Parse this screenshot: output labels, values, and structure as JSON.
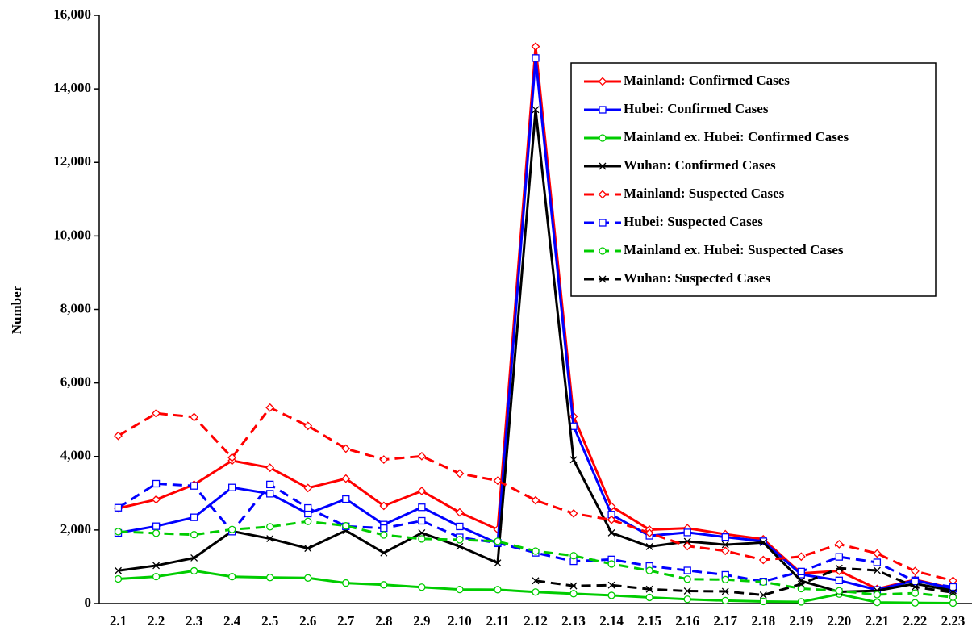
{
  "chart_data": {
    "type": "line",
    "ylabel": "Number",
    "categories": [
      "2.1",
      "2.2",
      "2.3",
      "2.4",
      "2.5",
      "2.6",
      "2.7",
      "2.8",
      "2.9",
      "2.10",
      "2.11",
      "2.12",
      "2.13",
      "2.14",
      "2.15",
      "2.16",
      "2.17",
      "2.18",
      "2.19",
      "2.20",
      "2.21",
      "2.22",
      "2.23"
    ],
    "ylim": [
      0,
      16000
    ],
    "yticks": [
      0,
      {
        "value": 2000,
        "label": "2,000"
      },
      {
        "value": 4000,
        "label": "4,000"
      },
      {
        "value": 6000,
        "label": "6,000"
      },
      {
        "value": 8000,
        "label": "8,000"
      },
      {
        "value": 10000,
        "label": "10,000"
      },
      {
        "value": 12000,
        "label": "12,000"
      },
      {
        "value": 14000,
        "label": "14,000"
      },
      {
        "value": 16000,
        "label": "16,000"
      }
    ],
    "series": [
      {
        "name": "Mainland: Confirmed Cases",
        "color": "#ff0000",
        "marker": "diamond",
        "dashed": false,
        "values": [
          2590,
          2829,
          3235,
          3887,
          3694,
          3143,
          3399,
          2656,
          3062,
          2478,
          2015,
          15152,
          5090,
          2641,
          2009,
          2048,
          1886,
          1749,
          820,
          889,
          397,
          648,
          409
        ]
      },
      {
        "name": "Hubei: Confirmed Cases",
        "color": "#0000ff",
        "marker": "square",
        "dashed": false,
        "values": [
          1921,
          2103,
          2345,
          3156,
          2987,
          2447,
          2841,
          2147,
          2618,
          2097,
          1638,
          14840,
          4823,
          2420,
          1843,
          1933,
          1807,
          1693,
          790,
          630,
          370,
          630,
          400
        ]
      },
      {
        "name": "Mainland ex. Hubei: Confirmed Cases",
        "color": "#00cc00",
        "marker": "circle",
        "dashed": false,
        "values": [
          669,
          732,
          890,
          731,
          707,
          696,
          558,
          509,
          444,
          381,
          377,
          312,
          267,
          221,
          166,
          115,
          79,
          56,
          45,
          258,
          31,
          18,
          11
        ]
      },
      {
        "name": "Wuhan: Confirmed Cases",
        "color": "#000000",
        "marker": "cross",
        "dashed": false,
        "values": [
          894,
          1033,
          1242,
          1967,
          1766,
          1501,
          1985,
          1379,
          1921,
          1552,
          1104,
          13436,
          3910,
          1923,
          1548,
          1690,
          1600,
          1660,
          615,
          319,
          348,
          541,
          348
        ]
      },
      {
        "name": "Mainland: Suspected Cases",
        "color": "#ff0000",
        "marker": "diamond",
        "dashed": true,
        "values": [
          4562,
          5173,
          5072,
          3971,
          5328,
          4833,
          4214,
          3916,
          4008,
          3536,
          3342,
          2807,
          2450,
          2277,
          1918,
          1563,
          1432,
          1185,
          1277,
          1614,
          1361,
          882,
          620
        ]
      },
      {
        "name": "Hubei: Suspected Cases",
        "color": "#0000ff",
        "marker": "square",
        "dashed": true,
        "values": [
          2606,
          3260,
          3200,
          1957,
          3240,
          2600,
          2100,
          2050,
          2250,
          1800,
          1650,
          1380,
          1150,
          1200,
          1020,
          900,
          780,
          600,
          870,
          1270,
          1120,
          600,
          450
        ]
      },
      {
        "name": "Mainland ex. Hubei: Suspected Cases",
        "color": "#00cc00",
        "marker": "circle",
        "dashed": true,
        "values": [
          1956,
          1913,
          1872,
          2014,
          2088,
          2233,
          2114,
          1866,
          1758,
          1736,
          1692,
          1427,
          1300,
          1077,
          898,
          663,
          652,
          585,
          407,
          345,
          241,
          282,
          170
        ]
      },
      {
        "name": "Wuhan: Suspected Cases",
        "color": "#000000",
        "marker": "cross",
        "dashed": true,
        "values": [
          null,
          null,
          null,
          null,
          null,
          null,
          null,
          null,
          null,
          null,
          null,
          620,
          480,
          500,
          390,
          340,
          330,
          230,
          530,
          960,
          900,
          450,
          300
        ]
      }
    ]
  }
}
